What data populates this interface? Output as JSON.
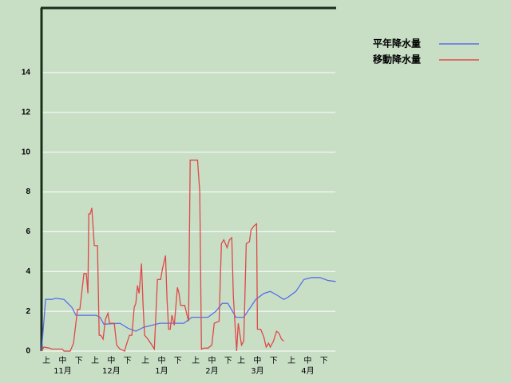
{
  "chart_data": {
    "type": "line",
    "xlim": [
      0,
      181
    ],
    "ylim": [
      0,
      17.25
    ],
    "yticks": [
      0,
      2,
      4,
      6,
      8,
      10,
      12,
      14
    ],
    "grid": true,
    "xticks": [
      {
        "value": 3,
        "label": "上"
      },
      {
        "value": 13,
        "label": "中"
      },
      {
        "value": 23,
        "label": "下"
      },
      {
        "value": 33,
        "label": "上"
      },
      {
        "value": 43,
        "label": "中"
      },
      {
        "value": 53,
        "label": "下"
      },
      {
        "value": 64,
        "label": "上"
      },
      {
        "value": 74,
        "label": "中"
      },
      {
        "value": 84,
        "label": "下"
      },
      {
        "value": 95,
        "label": "上"
      },
      {
        "value": 105,
        "label": "中"
      },
      {
        "value": 115,
        "label": "下"
      },
      {
        "value": 123,
        "label": "上"
      },
      {
        "value": 133,
        "label": "中"
      },
      {
        "value": 143,
        "label": "下"
      },
      {
        "value": 154,
        "label": "上"
      },
      {
        "value": 164,
        "label": "中"
      },
      {
        "value": 174,
        "label": "下"
      }
    ],
    "month_labels": [
      {
        "value": 13,
        "label": "11月"
      },
      {
        "value": 43,
        "label": "12月"
      },
      {
        "value": 74,
        "label": "1月"
      },
      {
        "value": 105,
        "label": "2月"
      },
      {
        "value": 133,
        "label": "3月"
      },
      {
        "value": 164,
        "label": "4月"
      }
    ],
    "legend": "top-right",
    "series": [
      {
        "name": "平年降水量",
        "color": "#5a6ee6",
        "x": [
          0,
          2.5,
          6.4,
          8.9,
          13.8,
          18.7,
          21.2,
          28.6,
          33.5,
          36,
          38.4,
          48.3,
          53.2,
          58.1,
          63,
          68,
          72.9,
          87.7,
          92.6,
          102.5,
          107.4,
          111.3,
          114.8,
          119.7,
          124.6,
          132,
          137,
          140.9,
          144.3,
          149.3,
          151.7,
          156.7,
          161.6,
          166.5,
          171.4,
          176.4,
          181.3
        ],
        "values": [
          0,
          2.6,
          2.6,
          2.65,
          2.6,
          2.2,
          1.8,
          1.8,
          1.8,
          1.7,
          1.35,
          1.4,
          1.15,
          1.0,
          1.2,
          1.3,
          1.4,
          1.4,
          1.7,
          1.7,
          2.0,
          2.4,
          2.4,
          1.7,
          1.7,
          2.6,
          2.9,
          3.0,
          2.85,
          2.6,
          2.7,
          3.0,
          3.6,
          3.7,
          3.7,
          3.55,
          3.5
        ]
      },
      {
        "name": "移動降水量",
        "color": "#e04848",
        "x": [
          0,
          1.5,
          4.9,
          6.4,
          12.8,
          13.8,
          17.7,
          19.7,
          22.2,
          23.6,
          26.1,
          27.6,
          28.6,
          29.1,
          30,
          31,
          32.5,
          34.5,
          35.5,
          36.5,
          37.9,
          39.4,
          40.9,
          41.9,
          44.8,
          46.3,
          48.3,
          51.2,
          52.2,
          54.2,
          55.7,
          57.1,
          58.1,
          59.1,
          60.1,
          61.6,
          62.6,
          63.5,
          65.5,
          68,
          69.5,
          71.4,
          73.4,
          74.4,
          76.4,
          77.3,
          78.3,
          79.3,
          80.3,
          81.8,
          83.7,
          84.7,
          85.7,
          88.2,
          90.6,
          91.6,
          96.1,
          97.5,
          98.5,
          100,
          102.5,
          104.9,
          106.4,
          109.4,
          110.8,
          112.3,
          114.3,
          115.8,
          117.2,
          118.2,
          120.2,
          121.2,
          123.2,
          124.6,
          126.1,
          128.1,
          129.1,
          131,
          132.5,
          133,
          135,
          137,
          138.4,
          139.9,
          140.9,
          142.9,
          144.8,
          146.3,
          147.8,
          149.3
        ],
        "values": [
          0,
          0.2,
          0.15,
          0.1,
          0.1,
          0,
          0,
          0.4,
          2.1,
          2.1,
          3.9,
          3.9,
          2.9,
          6.9,
          6.9,
          7.2,
          5.3,
          5.3,
          0.8,
          0.8,
          0.6,
          1.6,
          1.9,
          1.4,
          1.4,
          0.3,
          0.1,
          0,
          0.3,
          0.8,
          0.8,
          2.2,
          2.4,
          3.3,
          2.9,
          4.4,
          2.2,
          0.8,
          0.6,
          0.3,
          0.1,
          3.6,
          3.6,
          4.1,
          4.8,
          2.6,
          1.1,
          1.1,
          1.8,
          1.3,
          3.2,
          2.9,
          2.3,
          2.3,
          1.5,
          9.6,
          9.6,
          8.0,
          0.1,
          0.15,
          0.15,
          0.3,
          1.4,
          1.5,
          5.4,
          5.6,
          5.2,
          5.6,
          5.7,
          2.7,
          0,
          1.4,
          0.3,
          0.5,
          5.4,
          5.5,
          6.1,
          6.3,
          6.4,
          1.1,
          1.1,
          0.7,
          0.2,
          0.4,
          0.2,
          0.5,
          1.0,
          0.9,
          0.6,
          0.5
        ]
      }
    ]
  }
}
